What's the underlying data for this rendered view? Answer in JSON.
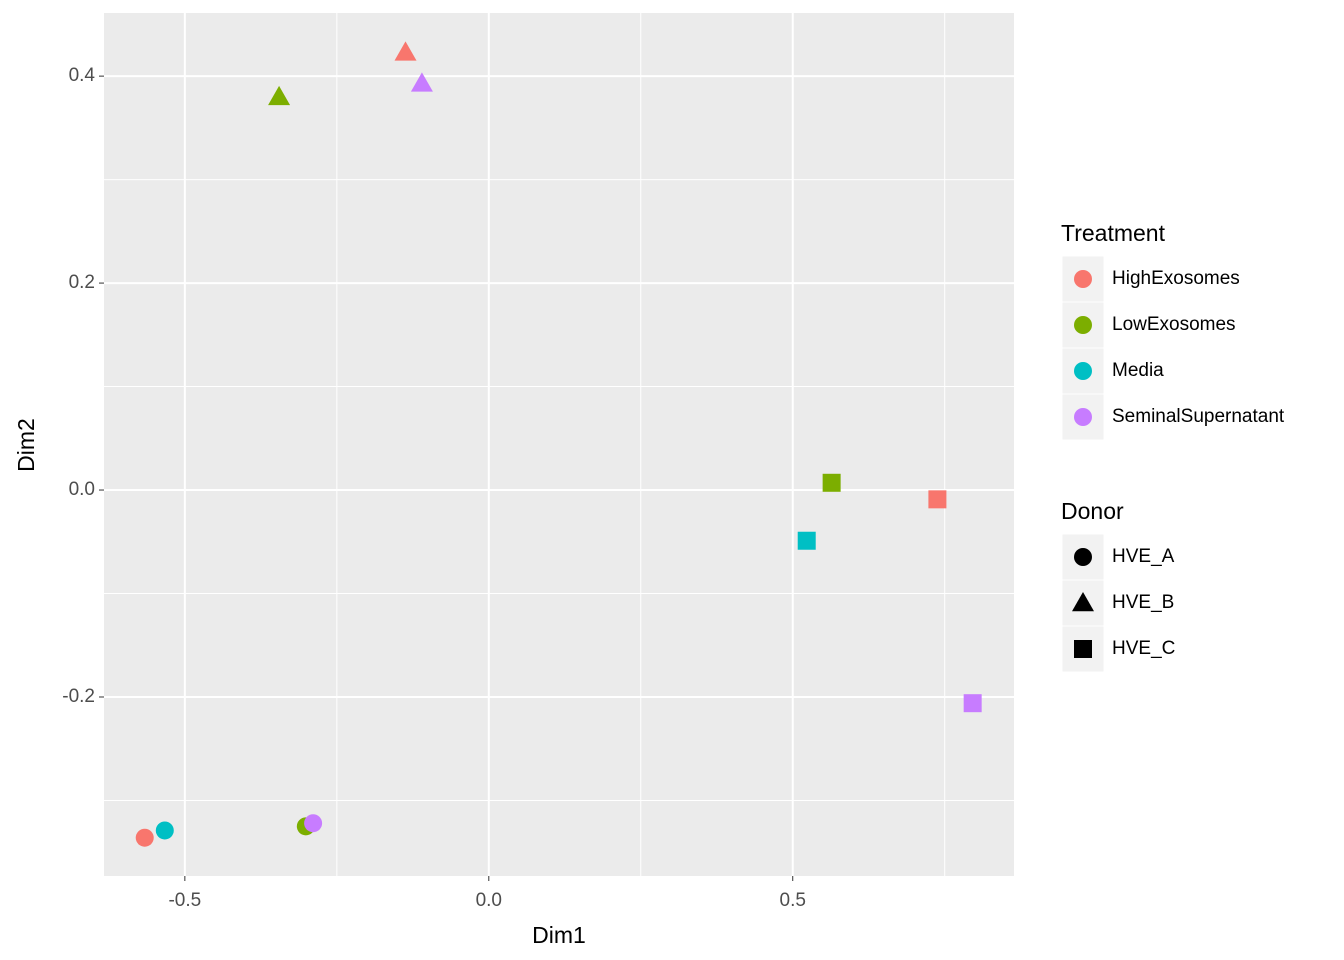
{
  "chart_data": {
    "type": "scatter",
    "x_label": "Dim1",
    "y_label": "Dim2",
    "xlim": [
      -0.633,
      0.864
    ],
    "ylim": [
      -0.373,
      0.461
    ],
    "xticks": [
      -0.5,
      {
        "value": 0,
        "label": "0.0"
      },
      0.5
    ],
    "yticks": [
      -0.2,
      {
        "value": 0,
        "label": "0.0"
      },
      0.2,
      0.4
    ],
    "grid": true,
    "legend_position": "right",
    "color_legend_title": "Treatment",
    "shape_legend": {
      "title": "Donor",
      "items": [
        "HVE_A",
        "HVE_B",
        "HVE_C"
      ]
    },
    "series": [
      {
        "name": "HighExosomes",
        "color": "#f8766d",
        "x": [
          -0.566,
          -0.137,
          0.738
        ],
        "y": [
          -0.336,
          0.423,
          -0.009
        ],
        "donor": [
          "HVE_A",
          "HVE_B",
          "HVE_C"
        ]
      },
      {
        "name": "LowExosomes",
        "color": "#7cae00",
        "x": [
          -0.301,
          -0.345,
          0.564
        ],
        "y": [
          -0.325,
          0.38,
          0.007
        ],
        "donor": [
          "HVE_A",
          "HVE_B",
          "HVE_C"
        ]
      },
      {
        "name": "Media",
        "color": "#00bfc4",
        "x": [
          -0.533,
          0.523
        ],
        "y": [
          -0.329,
          -0.049
        ],
        "donor": [
          "HVE_A",
          "HVE_C"
        ]
      },
      {
        "name": "SeminalSupernatant",
        "color": "#c77cff",
        "x": [
          -0.289,
          -0.11,
          0.796
        ],
        "y": [
          -0.322,
          0.393,
          -0.206
        ],
        "donor": [
          "HVE_A",
          "HVE_B",
          "HVE_C"
        ]
      }
    ]
  }
}
